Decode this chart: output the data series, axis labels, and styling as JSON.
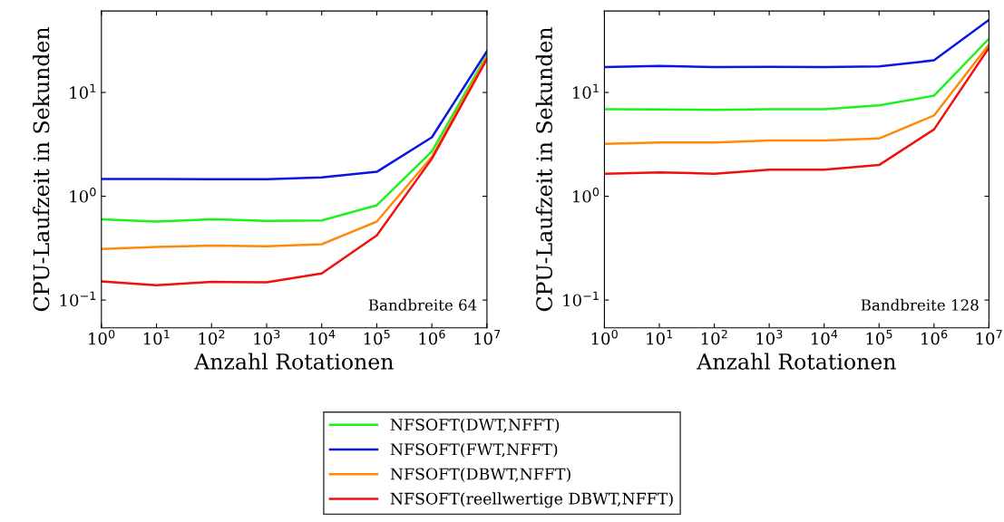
{
  "chart_data": [
    {
      "type": "line",
      "xlabel": "Anzahl Rotationen",
      "ylabel": "CPU-Laufzeit in Sekunden",
      "log": "xy",
      "x": [
        1,
        10,
        100,
        1000,
        10000,
        100000,
        1000000,
        10000000
      ],
      "xlim": [
        1,
        10000000
      ],
      "ylim": [
        0.054,
        61
      ],
      "xticks": [
        {
          "value": 1,
          "label": "10$^{0}$"
        },
        {
          "value": 10,
          "label": "10$^{1}$"
        },
        {
          "value": 100,
          "label": "10$^{2}$"
        },
        {
          "value": 1000,
          "label": "10$^{3}$"
        },
        {
          "value": 10000,
          "label": "10$^{4}$"
        },
        {
          "value": 100000,
          "label": "10$^{5}$"
        },
        {
          "value": 1000000,
          "label": "10$^{6}$"
        },
        {
          "value": 10000000,
          "label": "10$^{7}$"
        }
      ],
      "yticks": [
        {
          "value": 0.1,
          "label": "10$^{−1}$"
        },
        {
          "value": 1,
          "label": "10$^{0}$"
        },
        {
          "value": 10,
          "label": "10$^{1}$"
        }
      ],
      "annotations": [
        "Bandbreite 64"
      ],
      "legend": "bottom",
      "grid": false,
      "series": [
        {
          "name": "NFSOFT(DWT,NFFT)",
          "color": "#1ff01f",
          "values": [
            0.6,
            0.57,
            0.6,
            0.58,
            0.585,
            0.82,
            2.7,
            23
          ]
        },
        {
          "name": "NFSOFT(FWT,NFFT)",
          "color": "#0a14e6",
          "values": [
            1.47,
            1.47,
            1.46,
            1.46,
            1.52,
            1.72,
            3.7,
            25
          ]
        },
        {
          "name": "NFSOFT(DBWT,NFFT)",
          "color": "#ff8a0a",
          "values": [
            0.31,
            0.325,
            0.335,
            0.33,
            0.345,
            0.57,
            2.4,
            22
          ]
        },
        {
          "name": "NFSOFT(reellwertige DBWT,NFFT)",
          "color": "#f01010",
          "values": [
            0.151,
            0.139,
            0.15,
            0.148,
            0.18,
            0.42,
            2.3,
            21
          ]
        }
      ]
    },
    {
      "type": "line",
      "xlabel": "Anzahl Rotationen",
      "ylabel": "CPU-Laufzeit in Sekunden",
      "log": "xy",
      "x": [
        1,
        10,
        100,
        1000,
        10000,
        100000,
        1000000,
        10000000
      ],
      "xlim": [
        1,
        10000000
      ],
      "ylim": [
        0.054,
        61
      ],
      "xticks": [
        {
          "value": 1,
          "label": "10$^{0}$"
        },
        {
          "value": 10,
          "label": "10$^{1}$"
        },
        {
          "value": 100,
          "label": "10$^{2}$"
        },
        {
          "value": 1000,
          "label": "10$^{3}$"
        },
        {
          "value": 10000,
          "label": "10$^{4}$"
        },
        {
          "value": 100000,
          "label": "10$^{5}$"
        },
        {
          "value": 1000000,
          "label": "10$^{6}$"
        },
        {
          "value": 10000000,
          "label": "10$^{7}$"
        }
      ],
      "yticks": [
        {
          "value": 0.1,
          "label": "10$^{−1}$"
        },
        {
          "value": 1,
          "label": "10$^{0}$"
        },
        {
          "value": 10,
          "label": "10$^{1}$"
        }
      ],
      "annotations": [
        "Bandbreite 128"
      ],
      "legend": "bottom",
      "grid": false,
      "series": [
        {
          "name": "NFSOFT(DWT,NFFT)",
          "color": "#1ff01f",
          "values": [
            6.9,
            6.85,
            6.8,
            6.9,
            6.9,
            7.5,
            9.3,
            33
          ]
        },
        {
          "name": "NFSOFT(FWT,NFFT)",
          "color": "#0a14e6",
          "values": [
            17.6,
            18,
            17.6,
            17.7,
            17.6,
            17.8,
            20.4,
            50
          ]
        },
        {
          "name": "NFSOFT(DBWT,NFFT)",
          "color": "#ff8a0a",
          "values": [
            3.2,
            3.3,
            3.3,
            3.45,
            3.45,
            3.6,
            6.0,
            29
          ]
        },
        {
          "name": "NFSOFT(reellwertige DBWT,NFFT)",
          "color": "#f01010",
          "values": [
            1.65,
            1.7,
            1.65,
            1.8,
            1.8,
            2.0,
            4.4,
            27
          ]
        }
      ]
    }
  ]
}
